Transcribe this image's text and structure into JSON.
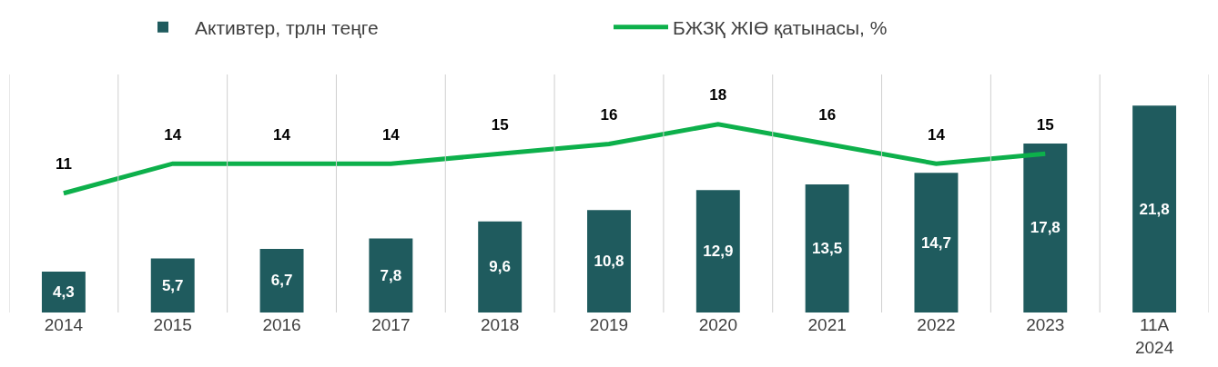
{
  "chart_data": {
    "type": "bar",
    "categories": [
      "2014",
      "2015",
      "2016",
      "2017",
      "2018",
      "2019",
      "2020",
      "2021",
      "2022",
      "2023",
      "11А\n2024"
    ],
    "series": [
      {
        "name": "Активтер, трлн теңге",
        "color": "#1f5b5e",
        "values": [
          4.3,
          5.7,
          6.7,
          7.8,
          9.6,
          10.8,
          12.9,
          13.5,
          14.7,
          17.8,
          21.8
        ],
        "value_labels": [
          "4,3",
          "5,7",
          "6,7",
          "7,8",
          "9,6",
          "10,8",
          "12,9",
          "13,5",
          "14,7",
          "17,8",
          "21,8"
        ]
      },
      {
        "name": "БЖЗҚ ЖІӨ қатынасы, %",
        "type": "line",
        "axis": "y2",
        "color": "#0db04b",
        "values": [
          11,
          14,
          14,
          14,
          15,
          16,
          18,
          16,
          14,
          15,
          null
        ],
        "value_labels": [
          "11",
          "14",
          "14",
          "14",
          "15",
          "16",
          "18",
          "16",
          "14",
          "15",
          null
        ]
      }
    ],
    "tick_labels": "x",
    "grid": "x",
    "legend": "top",
    "marker": "none",
    "line_style": "solid"
  }
}
